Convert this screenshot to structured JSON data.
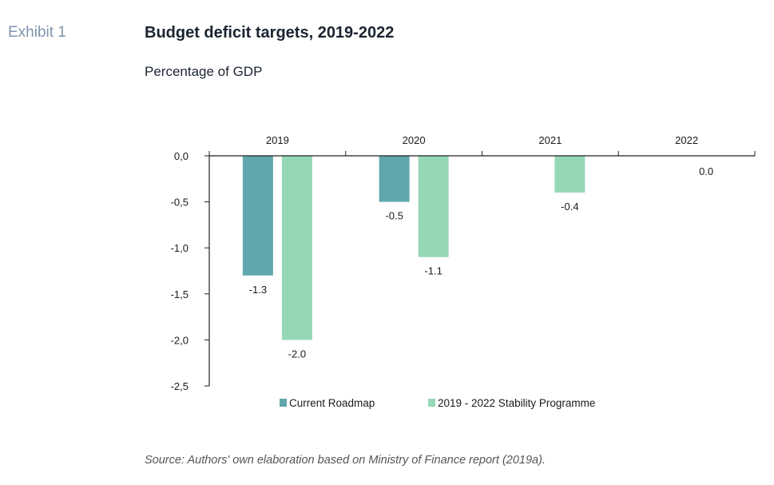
{
  "exhibit_label": "Exhibit 1",
  "source": "Source: Authors' own elaboration based on Ministry of Finance report (2019a).",
  "colors": {
    "current_roadmap": "#5fa7ad",
    "stability_programme": "#96d8b5"
  },
  "chart_data": {
    "type": "bar",
    "title": "Budget deficit targets, 2019-2022",
    "subtitle": "Percentage of GDP",
    "categories": [
      "2019",
      "2020",
      "2021",
      "2022"
    ],
    "series": [
      {
        "name": "Current Roadmap",
        "values": [
          -1.3,
          -0.5,
          null,
          null
        ],
        "labels": [
          "-1.3",
          "-0.5",
          "",
          ""
        ]
      },
      {
        "name": "2019 - 2022 Stability Programme",
        "values": [
          -2.0,
          -1.1,
          -0.4,
          0.0
        ],
        "labels": [
          "-2.0",
          "-1.1",
          "-0.4",
          "0.0"
        ]
      }
    ],
    "yticks": [
      "0,0",
      "-0,5",
      "-1,0",
      "-1,5",
      "-2,0",
      "-2,5"
    ],
    "ylim": [
      -2.5,
      0
    ],
    "xaxis_position": "top",
    "legend_position": "bottom",
    "grid": false
  }
}
